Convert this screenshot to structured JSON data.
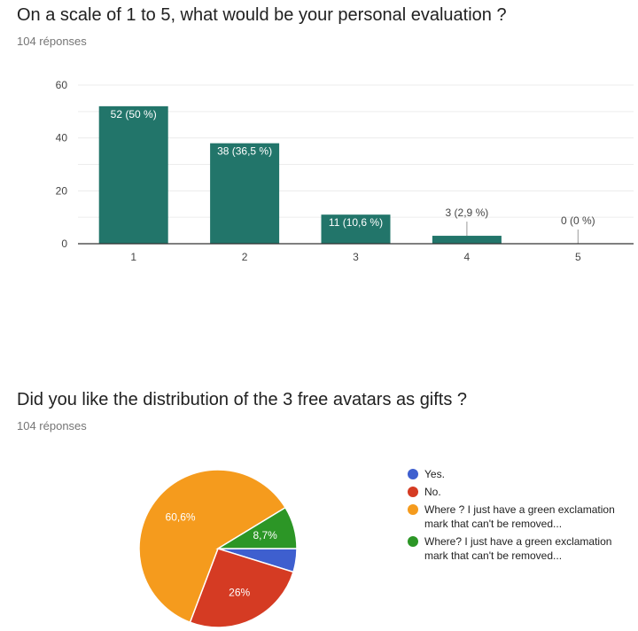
{
  "chart_data": [
    {
      "type": "bar",
      "title": "On a scale of 1 to 5, what would be your personal evaluation ?",
      "subtitle": "104 réponses",
      "categories": [
        "1",
        "2",
        "3",
        "4",
        "5"
      ],
      "values": [
        52,
        38,
        11,
        3,
        0
      ],
      "data_labels": [
        "52 (50 %)",
        "38 (36,5 %)",
        "11 (10,6 %)",
        "3 (2,9 %)",
        "0 (0 %)"
      ],
      "ylim": [
        0,
        60
      ],
      "yticks": [
        0,
        20,
        40,
        60
      ],
      "grid": true,
      "color": "#22756a"
    },
    {
      "type": "pie",
      "title": "Did you like the distribution of the 3 free avatars as gifts ?",
      "subtitle": "104 réponses",
      "slices": [
        {
          "label": "Yes.",
          "value": 4.8,
          "color": "#3e5fcf",
          "data_label": ""
        },
        {
          "label": "No.",
          "value": 26,
          "color": "#d53b23",
          "data_label": "26%"
        },
        {
          "label": "Where ? I just have a green exclamation mark that can't be removed...",
          "value": 60.6,
          "color": "#f59b1d",
          "data_label": "60,6%"
        },
        {
          "label": "Where? I just have a green exclamation mark that can't be removed...",
          "value": 8.7,
          "color": "#2c9626",
          "data_label": "8,7%"
        }
      ],
      "legend_position": "right"
    }
  ]
}
